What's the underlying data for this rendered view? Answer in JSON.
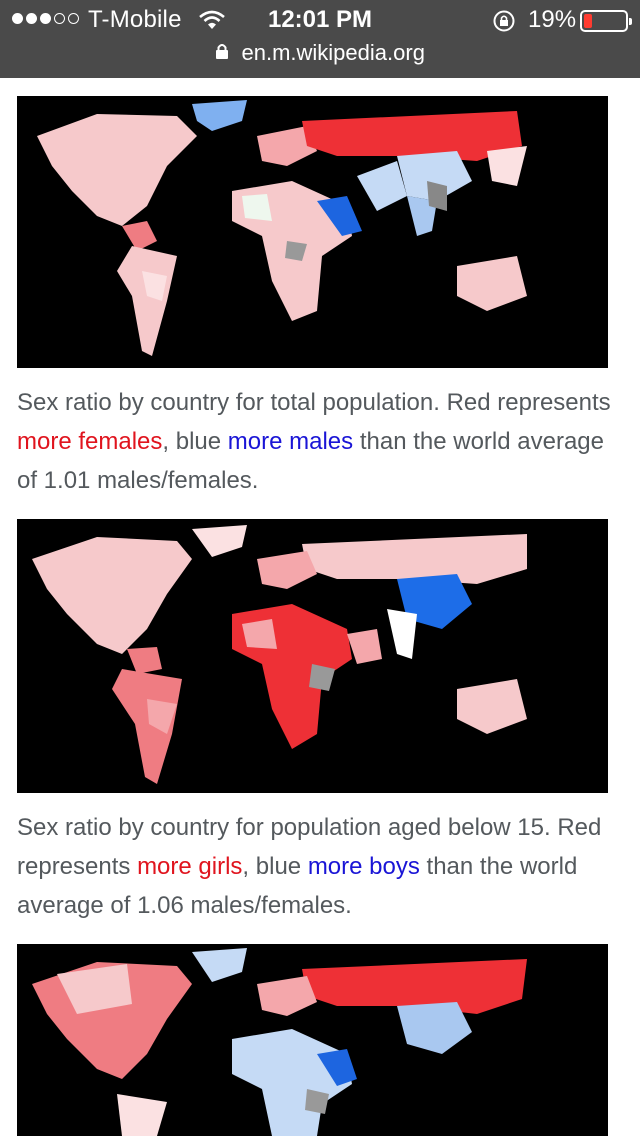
{
  "status_bar": {
    "carrier": "T-Mobile",
    "time": "12:01 PM",
    "battery_percent": "19%",
    "battery_level": 0.19,
    "signal_bars_filled": 3,
    "signal_bars_total": 5,
    "icons": [
      "wifi-icon",
      "rotation-lock-icon",
      "battery-icon",
      "lock-icon"
    ]
  },
  "url_bar": {
    "url": "en.m.wikipedia.org"
  },
  "colors": {
    "more_females_red": "#e0141e",
    "more_males_blue": "#1a15d6",
    "caption_gray": "#54595d",
    "bar_bg": "#4a4a4a"
  },
  "figures": [
    {
      "caption": {
        "before": "Sex ratio by country for total population. Red represents ",
        "highlight_red": "more females",
        "middle": ", blue ",
        "highlight_blue": "more males",
        "after": " than the world average of 1.01 males/females."
      }
    },
    {
      "caption": {
        "before": "Sex ratio by country for population aged below 15. Red represents ",
        "highlight_red": "more girls",
        "middle": ", blue ",
        "highlight_blue": "more boys",
        "after": " than the world average of 1.06 males/females."
      }
    },
    {
      "caption": null
    }
  ]
}
